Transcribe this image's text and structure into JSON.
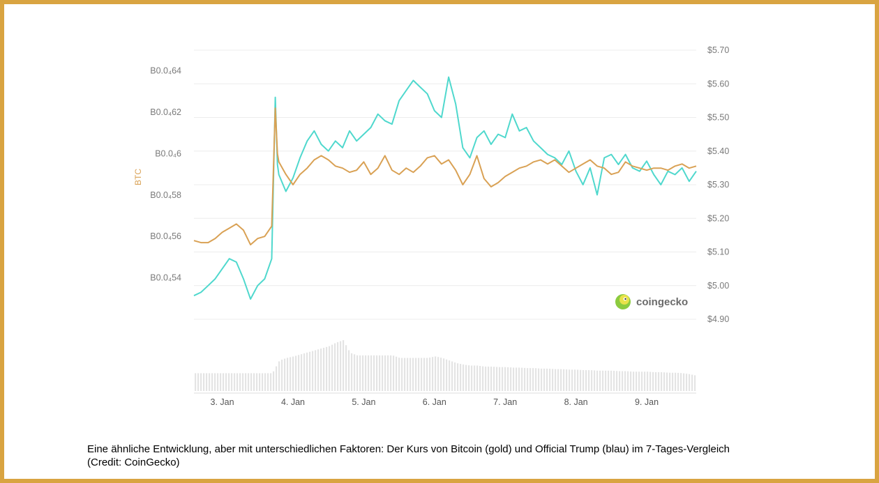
{
  "caption": {
    "line1": "Eine ähnliche Entwicklung, aber mit unterschiedlichen Faktoren: Der Kurs von Bitcoin (gold) und Official Trump (blau) im 7-Tages-Vergleich",
    "line2": "(Credit: CoinGecko)"
  },
  "brand": {
    "label": "coingecko",
    "icon": "gecko-logo-icon"
  },
  "colors": {
    "frame": "#d9a441",
    "btc_series": "#d9a154",
    "trump_series": "#4fd8cd",
    "volume": "#e4e4e4",
    "grid": "#ececec"
  },
  "chart_data": {
    "type": "line",
    "title": "",
    "x_ticks": [
      "3. Jan",
      "4. Jan",
      "5. Jan",
      "6. Jan",
      "7. Jan",
      "8. Jan",
      "9. Jan"
    ],
    "x_range_days": [
      2.6,
      9.7
    ],
    "y_left": {
      "label": "BTC",
      "tick_labels": [
        "B0.0₄64",
        "B0.0₄62",
        "B0.0₄6",
        "B0.0₄58",
        "B0.0₄56",
        "B0.0₄54"
      ],
      "ticks": [
        4.64e-05,
        4.62e-05,
        4.6e-05,
        4.58e-05,
        4.56e-05,
        4.54e-05
      ],
      "range": [
        4.52e-05,
        4.65e-05
      ]
    },
    "y_right": {
      "label": "",
      "tick_labels": [
        "$5.70",
        "$5.60",
        "$5.50",
        "$5.40",
        "$5.30",
        "$5.20",
        "$5.10",
        "$5.00",
        "$4.90"
      ],
      "ticks": [
        5.7,
        5.6,
        5.5,
        5.4,
        5.3,
        5.2,
        5.1,
        5.0,
        4.9
      ],
      "range": [
        4.9,
        5.7
      ]
    },
    "series": [
      {
        "axis": "left",
        "color": "#d9a154",
        "x": [
          2.6,
          2.7,
          2.8,
          2.9,
          3.0,
          3.1,
          3.2,
          3.3,
          3.4,
          3.5,
          3.6,
          3.7,
          3.75,
          3.78,
          3.8,
          3.9,
          4.0,
          4.1,
          4.2,
          4.3,
          4.4,
          4.5,
          4.6,
          4.7,
          4.8,
          4.9,
          5.0,
          5.1,
          5.2,
          5.3,
          5.4,
          5.5,
          5.6,
          5.7,
          5.8,
          5.9,
          6.0,
          6.1,
          6.2,
          6.3,
          6.4,
          6.5,
          6.6,
          6.7,
          6.8,
          6.9,
          7.0,
          7.1,
          7.2,
          7.3,
          7.4,
          7.5,
          7.6,
          7.7,
          7.8,
          7.9,
          8.0,
          8.1,
          8.2,
          8.3,
          8.4,
          8.5,
          8.6,
          8.7,
          8.8,
          8.9,
          9.0,
          9.1,
          9.2,
          9.3,
          9.4,
          9.5,
          9.6,
          9.7
        ],
        "values": [
          4.558e-05,
          4.557e-05,
          4.557e-05,
          4.559e-05,
          4.562e-05,
          4.564e-05,
          4.566e-05,
          4.563e-05,
          4.556e-05,
          4.559e-05,
          4.56e-05,
          4.565e-05,
          4.622e-05,
          4.6e-05,
          4.596e-05,
          4.59e-05,
          4.585e-05,
          4.59e-05,
          4.593e-05,
          4.597e-05,
          4.599e-05,
          4.597e-05,
          4.594e-05,
          4.593e-05,
          4.591e-05,
          4.592e-05,
          4.596e-05,
          4.59e-05,
          4.593e-05,
          4.599e-05,
          4.592e-05,
          4.59e-05,
          4.593e-05,
          4.591e-05,
          4.594e-05,
          4.598e-05,
          4.599e-05,
          4.595e-05,
          4.597e-05,
          4.592e-05,
          4.585e-05,
          4.59e-05,
          4.599e-05,
          4.588e-05,
          4.584e-05,
          4.586e-05,
          4.589e-05,
          4.591e-05,
          4.593e-05,
          4.594e-05,
          4.596e-05,
          4.597e-05,
          4.595e-05,
          4.597e-05,
          4.594e-05,
          4.591e-05,
          4.593e-05,
          4.595e-05,
          4.597e-05,
          4.594e-05,
          4.593e-05,
          4.59e-05,
          4.591e-05,
          4.596e-05,
          4.594e-05,
          4.593e-05,
          4.592e-05,
          4.593e-05,
          4.593e-05,
          4.592e-05,
          4.594e-05,
          4.595e-05,
          4.593e-05,
          4.594e-05
        ]
      },
      {
        "axis": "right",
        "color": "#4fd8cd",
        "x": [
          2.6,
          2.7,
          2.8,
          2.9,
          3.0,
          3.1,
          3.2,
          3.3,
          3.4,
          3.5,
          3.6,
          3.7,
          3.75,
          3.78,
          3.8,
          3.9,
          4.0,
          4.1,
          4.2,
          4.3,
          4.4,
          4.5,
          4.6,
          4.7,
          4.8,
          4.9,
          5.0,
          5.1,
          5.2,
          5.3,
          5.4,
          5.5,
          5.6,
          5.7,
          5.8,
          5.9,
          6.0,
          6.1,
          6.2,
          6.3,
          6.4,
          6.5,
          6.6,
          6.7,
          6.8,
          6.9,
          7.0,
          7.1,
          7.2,
          7.3,
          7.4,
          7.5,
          7.6,
          7.7,
          7.8,
          7.9,
          8.0,
          8.1,
          8.2,
          8.3,
          8.4,
          8.5,
          8.6,
          8.7,
          8.8,
          8.9,
          9.0,
          9.1,
          9.2,
          9.3,
          9.4,
          9.5,
          9.6,
          9.7
        ],
        "values": [
          4.97,
          4.98,
          5.0,
          5.02,
          5.05,
          5.08,
          5.07,
          5.02,
          4.96,
          5.0,
          5.02,
          5.08,
          5.56,
          5.36,
          5.33,
          5.28,
          5.32,
          5.38,
          5.43,
          5.46,
          5.42,
          5.4,
          5.43,
          5.41,
          5.46,
          5.43,
          5.45,
          5.47,
          5.51,
          5.49,
          5.48,
          5.55,
          5.58,
          5.61,
          5.59,
          5.57,
          5.52,
          5.5,
          5.62,
          5.54,
          5.41,
          5.38,
          5.44,
          5.46,
          5.42,
          5.45,
          5.44,
          5.51,
          5.46,
          5.47,
          5.43,
          5.41,
          5.39,
          5.38,
          5.36,
          5.4,
          5.34,
          5.3,
          5.35,
          5.27,
          5.38,
          5.39,
          5.36,
          5.39,
          5.35,
          5.34,
          5.37,
          5.33,
          5.3,
          5.34,
          5.33,
          5.35,
          5.31,
          5.34
        ]
      }
    ],
    "volume": {
      "description": "trading volume bars (relative)",
      "x": [
        2.6,
        2.7,
        2.8,
        2.9,
        3.0,
        3.1,
        3.2,
        3.3,
        3.4,
        3.5,
        3.6,
        3.7,
        3.8,
        3.9,
        4.0,
        4.1,
        4.2,
        4.3,
        4.4,
        4.5,
        4.6,
        4.7,
        4.8,
        4.9,
        5.0,
        5.1,
        5.2,
        5.3,
        5.4,
        5.5,
        5.6,
        5.7,
        5.8,
        5.9,
        6.0,
        6.1,
        6.2,
        6.3,
        6.4,
        6.5,
        6.6,
        6.7,
        6.8,
        6.9,
        7.0,
        7.1,
        7.2,
        7.3,
        7.4,
        7.5,
        7.6,
        7.7,
        7.8,
        7.9,
        8.0,
        8.1,
        8.2,
        8.3,
        8.4,
        8.5,
        8.6,
        8.7,
        8.8,
        8.9,
        9.0,
        9.1,
        9.2,
        9.3,
        9.4,
        9.5,
        9.6,
        9.7
      ],
      "values": [
        0.35,
        0.35,
        0.35,
        0.35,
        0.35,
        0.35,
        0.35,
        0.35,
        0.35,
        0.35,
        0.35,
        0.35,
        0.6,
        0.65,
        0.68,
        0.72,
        0.76,
        0.8,
        0.84,
        0.88,
        0.95,
        1.0,
        0.75,
        0.7,
        0.7,
        0.7,
        0.7,
        0.7,
        0.7,
        0.65,
        0.65,
        0.65,
        0.65,
        0.65,
        0.68,
        0.65,
        0.6,
        0.55,
        0.52,
        0.5,
        0.5,
        0.48,
        0.48,
        0.47,
        0.47,
        0.46,
        0.46,
        0.45,
        0.45,
        0.44,
        0.44,
        0.43,
        0.43,
        0.42,
        0.42,
        0.41,
        0.41,
        0.4,
        0.4,
        0.4,
        0.39,
        0.39,
        0.38,
        0.38,
        0.38,
        0.37,
        0.37,
        0.36,
        0.36,
        0.35,
        0.33,
        0.3
      ]
    },
    "grid": true,
    "legend": "none"
  }
}
